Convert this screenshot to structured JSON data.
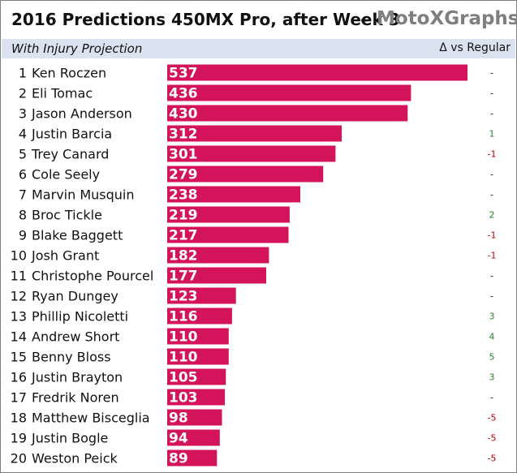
{
  "header": {
    "title": "2016 Predictions 450MX Pro, after Week 3",
    "separator": "-",
    "brand": "MotoXGraphs",
    "subtitle": "With Injury Projection",
    "delta_header": "Δ vs Regular"
  },
  "colors": {
    "bar": "#d4145a",
    "delta_positive": "#2e7d32",
    "delta_negative": "#c00000",
    "delta_none": "#111111",
    "subheader_band": "#dbe3f0",
    "brand_text": "#7f7f7f"
  },
  "chart_data": {
    "type": "bar",
    "orientation": "horizontal",
    "categories": [
      "Ken Roczen",
      "Eli Tomac",
      "Jason Anderson",
      "Justin Barcia",
      "Trey Canard",
      "Cole Seely",
      "Marvin Musquin",
      "Broc Tickle",
      "Blake Baggett",
      "Josh Grant",
      "Christophe Pourcel",
      "Ryan Dungey",
      "Phillip Nicoletti",
      "Andrew Short",
      "Benny Bloss",
      "Justin Brayton",
      "Fredrik Noren",
      "Matthew Bisceglia",
      "Justin Bogle",
      "Weston Peick"
    ],
    "ranks": [
      "1",
      "2",
      "3",
      "4",
      "5",
      "6",
      "7",
      "8",
      "9",
      "10",
      "11",
      "12",
      "13",
      "14",
      "15",
      "16",
      "17",
      "18",
      "19",
      "20"
    ],
    "values": [
      537,
      436,
      430,
      312,
      301,
      279,
      238,
      219,
      217,
      182,
      177,
      123,
      116,
      110,
      110,
      105,
      103,
      98,
      94,
      89
    ],
    "deltas": [
      "-",
      "-",
      "-",
      "1",
      "-1",
      "-",
      "-",
      "2",
      "-1",
      "-1",
      "-",
      "-",
      "3",
      "4",
      "5",
      "3",
      "-",
      "-5",
      "-5",
      "-5"
    ],
    "xlim": [
      0,
      537
    ],
    "grid": false,
    "legend": "none"
  }
}
